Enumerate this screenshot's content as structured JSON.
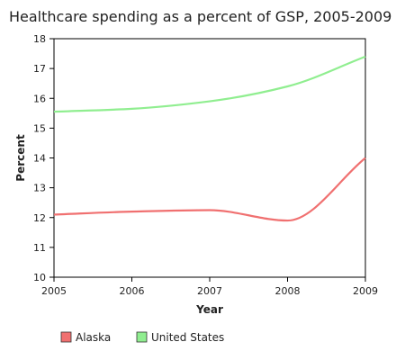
{
  "chart_data": {
    "type": "line",
    "title": "Healthcare spending as a percent of GSP, 2005-2009",
    "xlabel": "Year",
    "ylabel": "Percent",
    "x": [
      2005,
      2006,
      2007,
      2008,
      2009
    ],
    "xlim": [
      2005,
      2009
    ],
    "ylim": [
      10,
      18
    ],
    "yticks": [
      10,
      11,
      12,
      13,
      14,
      15,
      16,
      17,
      18
    ],
    "grid": false,
    "legend_position": "bottom-left",
    "series": [
      {
        "name": "Alaska",
        "color": "#f07070",
        "values": [
          12.1,
          12.2,
          12.25,
          11.9,
          14.0
        ]
      },
      {
        "name": "United States",
        "color": "#90ee90",
        "values": [
          15.55,
          15.65,
          15.9,
          16.4,
          17.4
        ]
      }
    ]
  }
}
